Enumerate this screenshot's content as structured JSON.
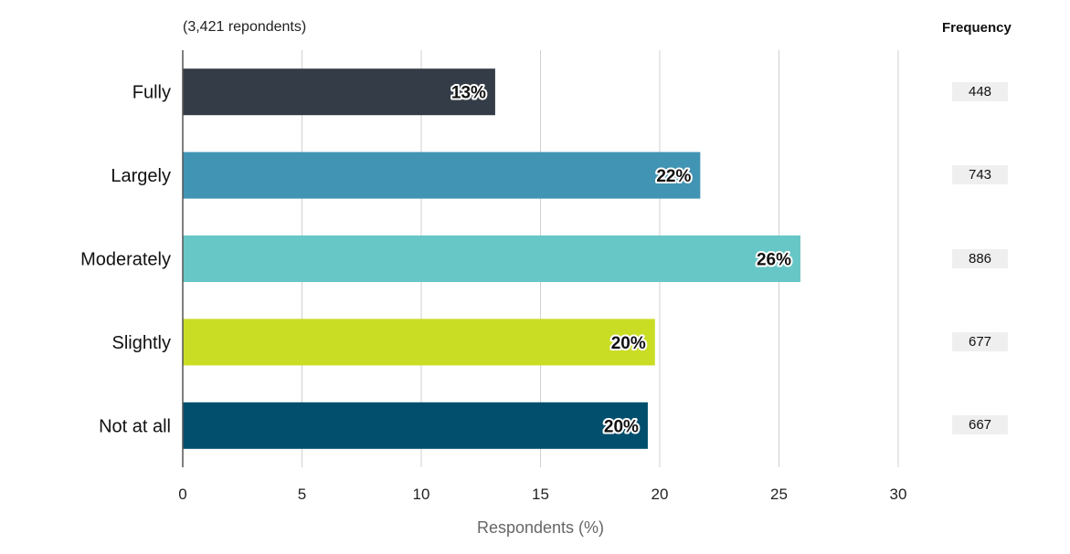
{
  "chart_data": {
    "type": "bar",
    "orientation": "horizontal",
    "subtitle": "(3,421 repondents)",
    "xlabel": "Respondents (%)",
    "ylabel": "",
    "xlim": [
      0,
      30
    ],
    "xticks": [
      0,
      5,
      10,
      15,
      20,
      25,
      30
    ],
    "grid": true,
    "categories": [
      "Fully",
      "Largely",
      "Moderately",
      "Slightly",
      "Not at all"
    ],
    "values": [
      13.1,
      21.7,
      25.9,
      19.8,
      19.5
    ],
    "value_labels": [
      "13%",
      "22%",
      "26%",
      "20%",
      "20%"
    ],
    "colors": [
      "#343d47",
      "#4194b3",
      "#67c7c6",
      "#cadd25",
      "#024f6d"
    ],
    "frequency_header": "Frequency",
    "frequencies": [
      "448",
      "743",
      "886",
      "677",
      "667"
    ]
  }
}
